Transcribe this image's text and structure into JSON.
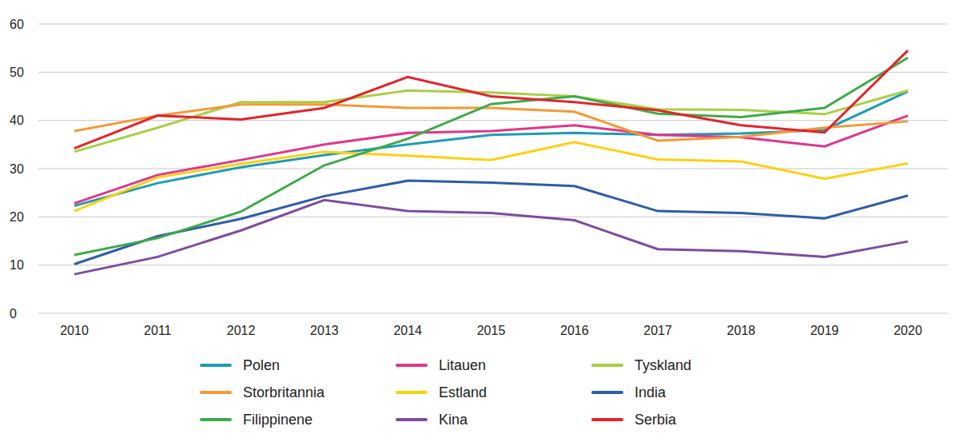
{
  "chart_data": {
    "type": "line",
    "categories": [
      "2010",
      "2011",
      "2012",
      "2013",
      "2014",
      "2015",
      "2016",
      "2017",
      "2018",
      "2019",
      "2020"
    ],
    "ylim": [
      0,
      60
    ],
    "yticks": [
      0,
      10,
      20,
      30,
      40,
      50,
      60
    ],
    "grid": true,
    "legend": "bottom",
    "series": [
      {
        "name": "Polen",
        "color": "#1f9bb8",
        "values": [
          22.3,
          27,
          30.3,
          32.8,
          35,
          37,
          37.4,
          37,
          37.3,
          38,
          46
        ]
      },
      {
        "name": "Litauen",
        "color": "#e2358c",
        "values": [
          22.8,
          28.7,
          31.8,
          35,
          37.4,
          37.8,
          39,
          37,
          36.5,
          34.6,
          41
        ]
      },
      {
        "name": "Tyskland",
        "color": "#a8cf45",
        "values": [
          33.5,
          38.5,
          43.8,
          43.8,
          46.2,
          45.8,
          45,
          42.3,
          42.2,
          41.3,
          46.2
        ]
      },
      {
        "name": "Storbritannia",
        "color": "#f39a35",
        "values": [
          37.8,
          41,
          43.3,
          43.3,
          42.6,
          42.6,
          41.8,
          35.8,
          36.6,
          38.5,
          39.8
        ]
      },
      {
        "name": "Estland",
        "color": "#fcd10f",
        "values": [
          21.2,
          28.2,
          31,
          33.5,
          32.7,
          31.8,
          35.5,
          31.9,
          31.5,
          27.9,
          31.1
        ]
      },
      {
        "name": "India",
        "color": "#2f5ca8",
        "values": [
          10.2,
          16,
          19.6,
          24.3,
          27.5,
          27.1,
          26.4,
          21.2,
          20.8,
          19.7,
          24.4
        ]
      },
      {
        "name": "Filippinene",
        "color": "#3eaa4a",
        "values": [
          12.1,
          15.6,
          21.1,
          30.7,
          36.2,
          43.4,
          45,
          41.4,
          40.7,
          42.6,
          53
        ]
      },
      {
        "name": "Kina",
        "color": "#7e4c9f",
        "values": [
          8.1,
          11.7,
          17.2,
          23.5,
          21.2,
          20.8,
          19.3,
          13.3,
          12.9,
          11.7,
          14.9
        ]
      },
      {
        "name": "Serbia",
        "color": "#e3242b",
        "values": [
          34.2,
          41,
          40.2,
          42.6,
          49,
          45,
          43.8,
          42.1,
          39,
          37.5,
          54.5
        ]
      }
    ]
  }
}
